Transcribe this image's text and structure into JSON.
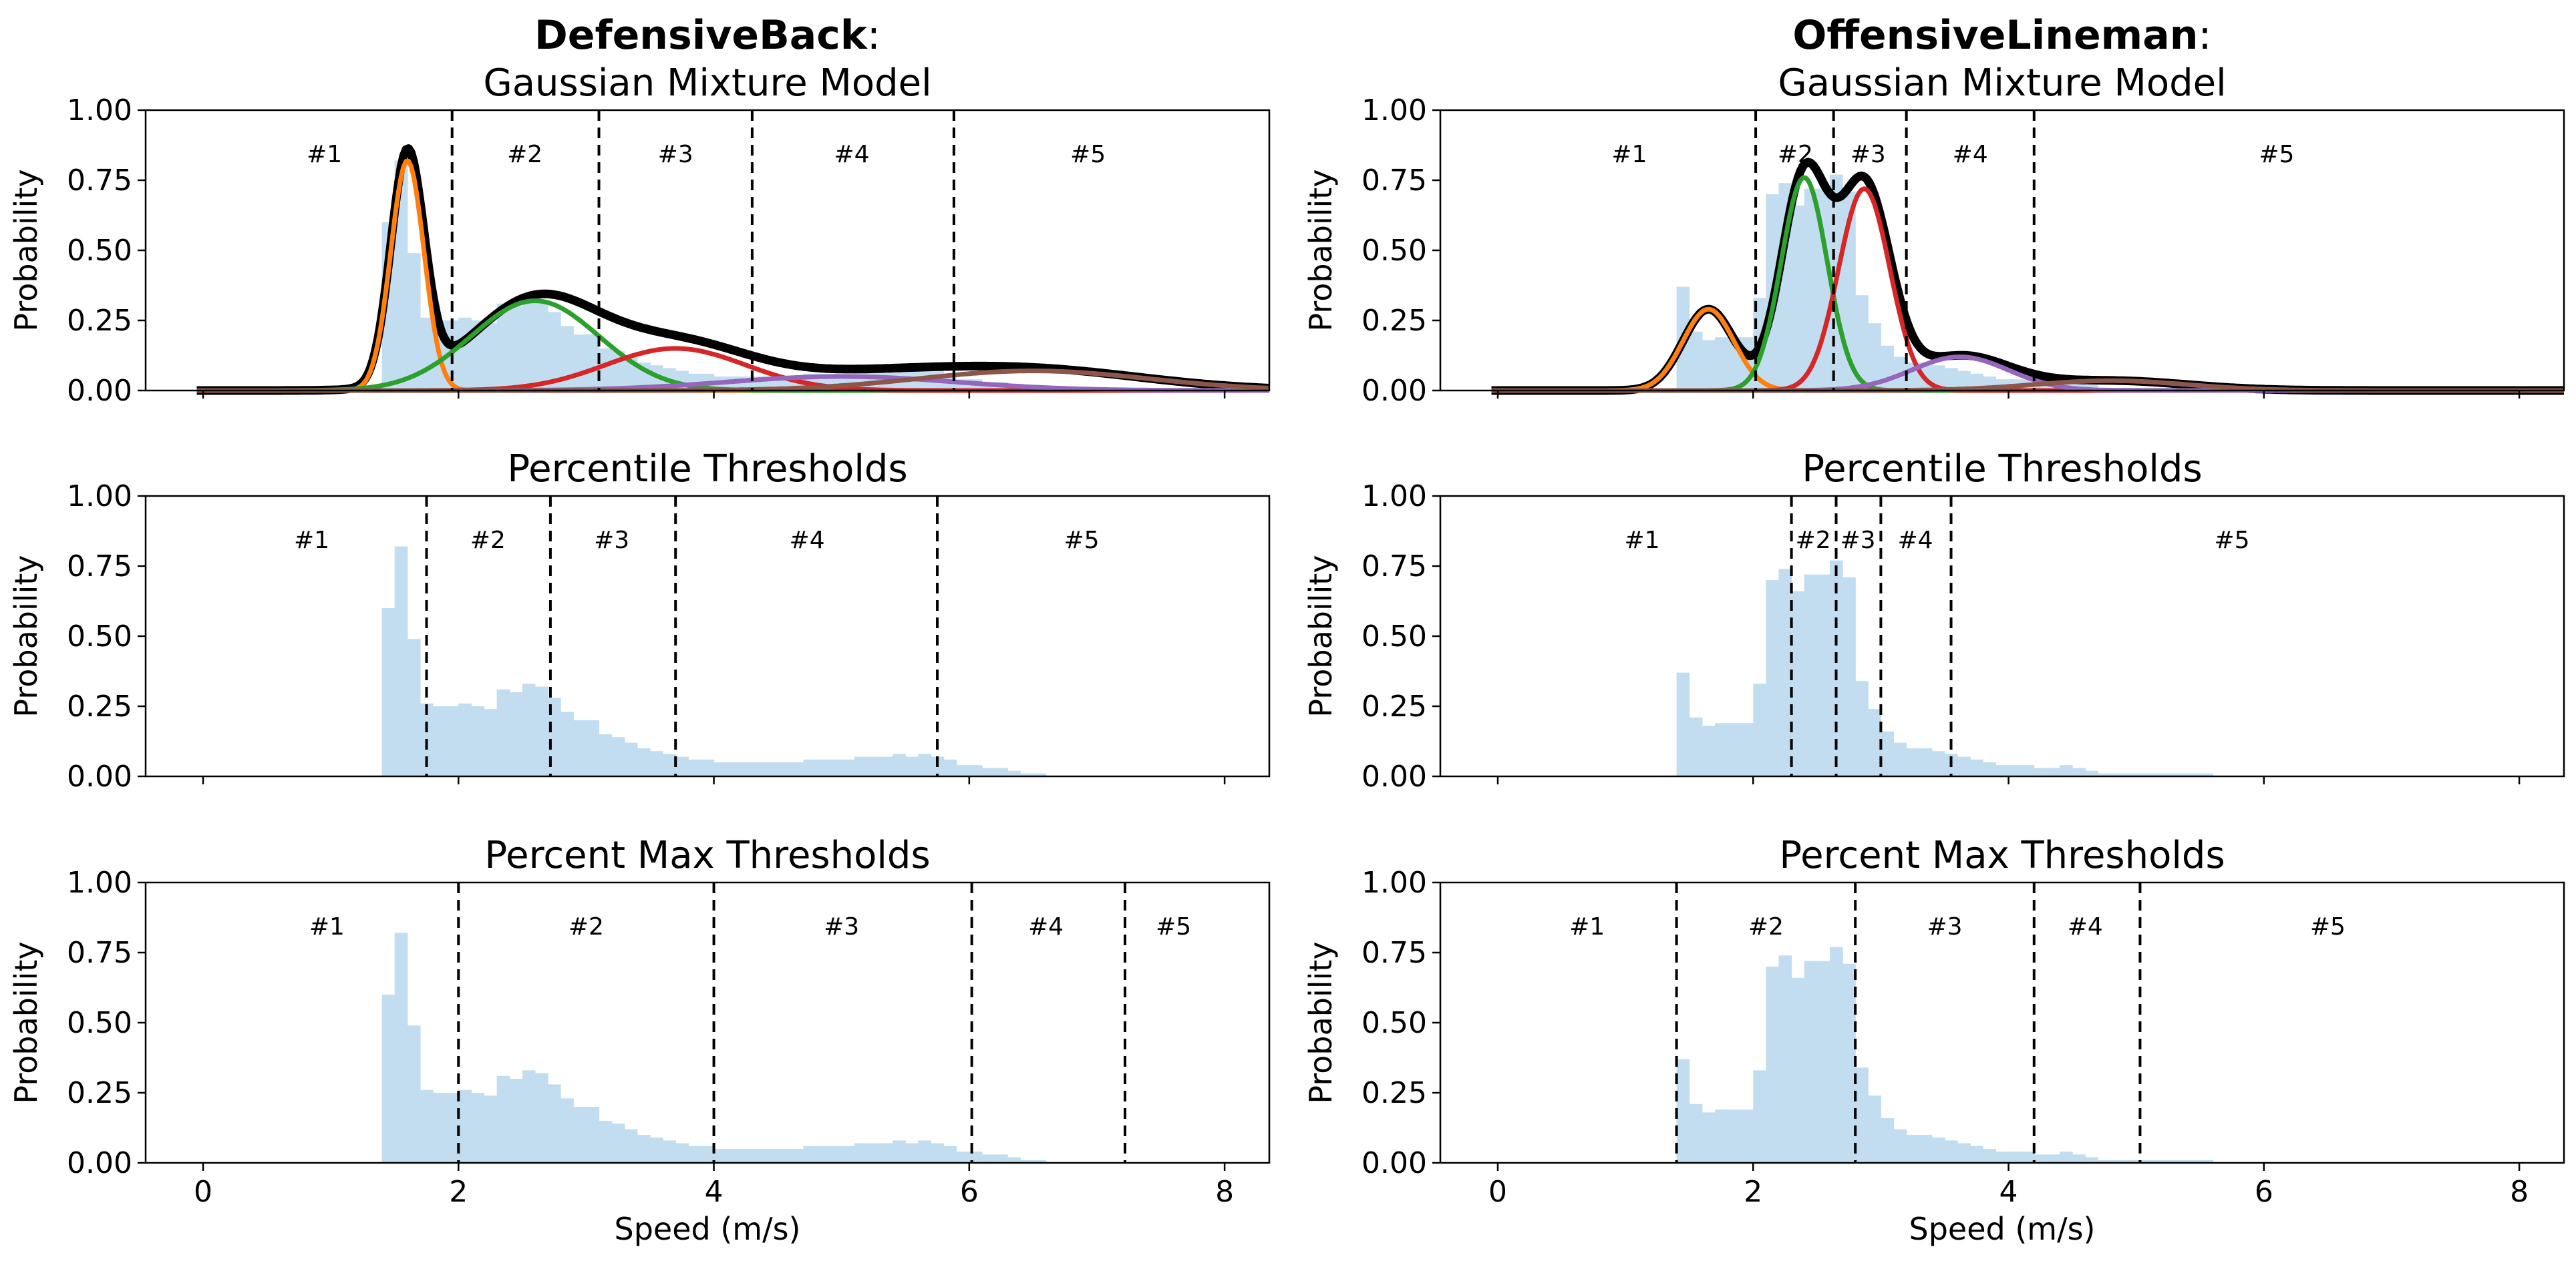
{
  "chart_data": [
    {
      "id": "db-gmm",
      "type": "histogram+gmm",
      "player_bold": "DefensiveBack",
      "player_suffix": ":",
      "title": "Gaussian Mixture Model",
      "xlabel": "",
      "ylabel": "Probability",
      "xlim": [
        -0.45,
        8.35
      ],
      "ylim": [
        0,
        1
      ],
      "xticks": [
        0,
        2,
        4,
        6,
        8
      ],
      "yticks": [
        "0.00",
        "0.25",
        "0.50",
        "0.75",
        "1.00"
      ],
      "show_xtick_labels": false,
      "hist": {
        "start": 1.4,
        "bin_width": 0.1,
        "values": [
          0.6,
          0.82,
          0.49,
          0.26,
          0.25,
          0.25,
          0.26,
          0.25,
          0.24,
          0.31,
          0.3,
          0.33,
          0.32,
          0.28,
          0.23,
          0.2,
          0.2,
          0.15,
          0.14,
          0.12,
          0.1,
          0.09,
          0.08,
          0.07,
          0.06,
          0.06,
          0.05,
          0.05,
          0.05,
          0.05,
          0.05,
          0.05,
          0.05,
          0.06,
          0.06,
          0.06,
          0.06,
          0.07,
          0.07,
          0.07,
          0.08,
          0.07,
          0.08,
          0.07,
          0.06,
          0.04,
          0.04,
          0.03,
          0.03,
          0.02,
          0.01,
          0.01
        ]
      },
      "gmm": {
        "x_range": [
          -0.05,
          8.35
        ],
        "components": [
          {
            "color": "#ff7f0e",
            "mu": 1.6,
            "sigma": 0.13,
            "amp": 0.82
          },
          {
            "color": "#2ca02c",
            "mu": 2.6,
            "sigma": 0.5,
            "amp": 0.32
          },
          {
            "color": "#d62728",
            "mu": 3.7,
            "sigma": 0.55,
            "amp": 0.15
          },
          {
            "color": "#9467bd",
            "mu": 5.0,
            "sigma": 0.9,
            "amp": 0.05
          },
          {
            "color": "#8c564b",
            "mu": 6.5,
            "sigma": 0.9,
            "amp": 0.07
          }
        ]
      },
      "thresholds": [
        1.95,
        3.1,
        4.3,
        5.88
      ],
      "regions": [
        {
          "label": "#1",
          "x": 0.95
        },
        {
          "label": "#2",
          "x": 2.52
        },
        {
          "label": "#3",
          "x": 3.7
        },
        {
          "label": "#4",
          "x": 5.08
        },
        {
          "label": "#5",
          "x": 6.93
        }
      ]
    },
    {
      "id": "ol-gmm",
      "type": "histogram+gmm",
      "player_bold": "OffensiveLineman",
      "player_suffix": ":",
      "title": "Gaussian Mixture Model",
      "xlabel": "",
      "ylabel": "Probability",
      "xlim": [
        -0.45,
        8.35
      ],
      "ylim": [
        0,
        1
      ],
      "xticks": [
        0,
        2,
        4,
        6,
        8
      ],
      "yticks": [
        "0.00",
        "0.25",
        "0.50",
        "0.75",
        "1.00"
      ],
      "show_xtick_labels": false,
      "hist": {
        "start": 1.4,
        "bin_width": 0.1,
        "values": [
          0.37,
          0.21,
          0.18,
          0.19,
          0.19,
          0.19,
          0.33,
          0.7,
          0.74,
          0.66,
          0.72,
          0.72,
          0.77,
          0.71,
          0.34,
          0.24,
          0.16,
          0.12,
          0.1,
          0.1,
          0.09,
          0.08,
          0.07,
          0.06,
          0.05,
          0.04,
          0.04,
          0.04,
          0.03,
          0.03,
          0.04,
          0.03,
          0.02,
          0.01,
          0.01,
          0.01,
          0.01,
          0.01,
          0.01,
          0.01,
          0.01,
          0.01
        ]
      },
      "gmm": {
        "x_range": [
          -0.05,
          8.35
        ],
        "components": [
          {
            "color": "#ff7f0e",
            "mu": 1.65,
            "sigma": 0.2,
            "amp": 0.29
          },
          {
            "color": "#2ca02c",
            "mu": 2.4,
            "sigma": 0.18,
            "amp": 0.76
          },
          {
            "color": "#d62728",
            "mu": 2.87,
            "sigma": 0.2,
            "amp": 0.72
          },
          {
            "color": "#9467bd",
            "mu": 3.62,
            "sigma": 0.38,
            "amp": 0.12
          },
          {
            "color": "#8c564b",
            "mu": 4.8,
            "sigma": 0.6,
            "amp": 0.035
          }
        ]
      },
      "thresholds": [
        2.02,
        2.63,
        3.2,
        4.2
      ],
      "regions": [
        {
          "label": "#1",
          "x": 1.03
        },
        {
          "label": "#2",
          "x": 2.33
        },
        {
          "label": "#3",
          "x": 2.9
        },
        {
          "label": "#4",
          "x": 3.7
        },
        {
          "label": "#5",
          "x": 6.1
        }
      ]
    },
    {
      "id": "db-pct",
      "type": "histogram",
      "title": "Percentile Thresholds",
      "xlabel": "",
      "ylabel": "Probability",
      "xlim": [
        -0.45,
        8.35
      ],
      "ylim": [
        0,
        1
      ],
      "xticks": [
        0,
        2,
        4,
        6,
        8
      ],
      "yticks": [
        "0.00",
        "0.25",
        "0.50",
        "0.75",
        "1.00"
      ],
      "show_xtick_labels": false,
      "hist": {
        "start": 1.4,
        "bin_width": 0.1,
        "values": [
          0.6,
          0.82,
          0.49,
          0.26,
          0.25,
          0.25,
          0.26,
          0.25,
          0.24,
          0.31,
          0.3,
          0.33,
          0.32,
          0.28,
          0.23,
          0.2,
          0.2,
          0.15,
          0.14,
          0.12,
          0.1,
          0.09,
          0.08,
          0.07,
          0.06,
          0.06,
          0.05,
          0.05,
          0.05,
          0.05,
          0.05,
          0.05,
          0.05,
          0.06,
          0.06,
          0.06,
          0.06,
          0.07,
          0.07,
          0.07,
          0.08,
          0.07,
          0.08,
          0.07,
          0.06,
          0.04,
          0.04,
          0.03,
          0.03,
          0.02,
          0.01,
          0.01
        ]
      },
      "thresholds": [
        1.75,
        2.72,
        3.7,
        5.75
      ],
      "regions": [
        {
          "label": "#1",
          "x": 0.85
        },
        {
          "label": "#2",
          "x": 2.23
        },
        {
          "label": "#3",
          "x": 3.2
        },
        {
          "label": "#4",
          "x": 4.73
        },
        {
          "label": "#5",
          "x": 6.88
        }
      ]
    },
    {
      "id": "ol-pct",
      "type": "histogram",
      "title": "Percentile Thresholds",
      "xlabel": "",
      "ylabel": "Probability",
      "xlim": [
        -0.45,
        8.35
      ],
      "ylim": [
        0,
        1
      ],
      "xticks": [
        0,
        2,
        4,
        6,
        8
      ],
      "yticks": [
        "0.00",
        "0.25",
        "0.50",
        "0.75",
        "1.00"
      ],
      "show_xtick_labels": false,
      "hist": {
        "start": 1.4,
        "bin_width": 0.1,
        "values": [
          0.37,
          0.21,
          0.18,
          0.19,
          0.19,
          0.19,
          0.33,
          0.7,
          0.74,
          0.66,
          0.72,
          0.72,
          0.77,
          0.71,
          0.34,
          0.24,
          0.16,
          0.12,
          0.1,
          0.1,
          0.09,
          0.08,
          0.07,
          0.06,
          0.05,
          0.04,
          0.04,
          0.04,
          0.03,
          0.03,
          0.04,
          0.03,
          0.02,
          0.01,
          0.01,
          0.01,
          0.01,
          0.01,
          0.01,
          0.01,
          0.01,
          0.01
        ]
      },
      "thresholds": [
        2.3,
        2.65,
        3.0,
        3.55
      ],
      "regions": [
        {
          "label": "#1",
          "x": 1.13
        },
        {
          "label": "#2",
          "x": 2.47
        },
        {
          "label": "#3",
          "x": 2.82
        },
        {
          "label": "#4",
          "x": 3.27
        },
        {
          "label": "#5",
          "x": 5.75
        }
      ]
    },
    {
      "id": "db-max",
      "type": "histogram",
      "title": "Percent Max Thresholds",
      "xlabel": "Speed (m/s)",
      "ylabel": "Probability",
      "xlim": [
        -0.45,
        8.35
      ],
      "ylim": [
        0,
        1
      ],
      "xticks": [
        0,
        2,
        4,
        6,
        8
      ],
      "yticks": [
        "0.00",
        "0.25",
        "0.50",
        "0.75",
        "1.00"
      ],
      "show_xtick_labels": true,
      "hist": {
        "start": 1.4,
        "bin_width": 0.1,
        "values": [
          0.6,
          0.82,
          0.49,
          0.26,
          0.25,
          0.25,
          0.26,
          0.25,
          0.24,
          0.31,
          0.3,
          0.33,
          0.32,
          0.28,
          0.23,
          0.2,
          0.2,
          0.15,
          0.14,
          0.12,
          0.1,
          0.09,
          0.08,
          0.07,
          0.06,
          0.06,
          0.05,
          0.05,
          0.05,
          0.05,
          0.05,
          0.05,
          0.05,
          0.06,
          0.06,
          0.06,
          0.06,
          0.07,
          0.07,
          0.07,
          0.08,
          0.07,
          0.08,
          0.07,
          0.06,
          0.04,
          0.04,
          0.03,
          0.03,
          0.02,
          0.01,
          0.01
        ]
      },
      "thresholds": [
        2.0,
        4.0,
        6.02,
        7.22
      ],
      "regions": [
        {
          "label": "#1",
          "x": 0.97
        },
        {
          "label": "#2",
          "x": 3.0
        },
        {
          "label": "#3",
          "x": 5.0
        },
        {
          "label": "#4",
          "x": 6.6
        },
        {
          "label": "#5",
          "x": 7.6
        }
      ]
    },
    {
      "id": "ol-max",
      "type": "histogram",
      "title": "Percent Max Thresholds",
      "xlabel": "Speed (m/s)",
      "ylabel": "Probability",
      "xlim": [
        -0.45,
        8.35
      ],
      "ylim": [
        0,
        1
      ],
      "xticks": [
        0,
        2,
        4,
        6,
        8
      ],
      "yticks": [
        "0.00",
        "0.25",
        "0.50",
        "0.75",
        "1.00"
      ],
      "show_xtick_labels": true,
      "hist": {
        "start": 1.4,
        "bin_width": 0.1,
        "values": [
          0.37,
          0.21,
          0.18,
          0.19,
          0.19,
          0.19,
          0.33,
          0.7,
          0.74,
          0.66,
          0.72,
          0.72,
          0.77,
          0.71,
          0.34,
          0.24,
          0.16,
          0.12,
          0.1,
          0.1,
          0.09,
          0.08,
          0.07,
          0.06,
          0.05,
          0.04,
          0.04,
          0.04,
          0.03,
          0.03,
          0.04,
          0.03,
          0.02,
          0.01,
          0.01,
          0.01,
          0.01,
          0.01,
          0.01,
          0.01,
          0.01,
          0.01
        ]
      },
      "thresholds": [
        1.4,
        2.8,
        4.2,
        5.03
      ],
      "regions": [
        {
          "label": "#1",
          "x": 0.7
        },
        {
          "label": "#2",
          "x": 2.1
        },
        {
          "label": "#3",
          "x": 3.5
        },
        {
          "label": "#4",
          "x": 4.6
        },
        {
          "label": "#5",
          "x": 6.5
        }
      ]
    }
  ]
}
